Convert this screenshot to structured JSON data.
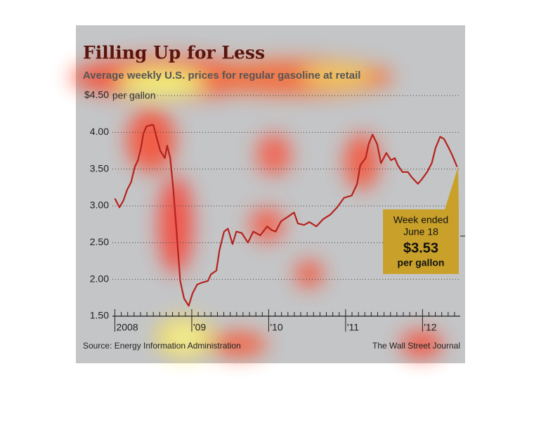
{
  "chart_data": {
    "type": "line",
    "title": "Filling Up for Less",
    "subtitle": "Average weekly U.S. prices for regular gasoline at retail",
    "y_unit": "per gallon",
    "source": "Source: Energy Information Administration",
    "credit": "The Wall Street Journal",
    "x": [
      2008.0,
      2008.06,
      2008.11,
      2008.16,
      2008.21,
      2008.26,
      2008.3,
      2008.34,
      2008.37,
      2008.41,
      2008.47,
      2008.5,
      2008.54,
      2008.59,
      2008.65,
      2008.68,
      2008.72,
      2008.76,
      2008.81,
      2008.85,
      2008.9,
      2008.96,
      2009.01,
      2009.07,
      2009.14,
      2009.21,
      2009.25,
      2009.32,
      2009.36,
      2009.42,
      2009.47,
      2009.53,
      2009.58,
      2009.65,
      2009.73,
      2009.8,
      2009.89,
      2009.98,
      2010.04,
      2010.09,
      2010.16,
      2010.26,
      2010.33,
      2010.38,
      2010.46,
      2010.53,
      2010.62,
      2010.71,
      2010.8,
      2010.89,
      2010.98,
      2011.08,
      2011.15,
      2011.19,
      2011.26,
      2011.3,
      2011.35,
      2011.41,
      2011.46,
      2011.53,
      2011.59,
      2011.64,
      2011.68,
      2011.74,
      2011.81,
      2011.86,
      2011.94,
      2011.99,
      2012.06,
      2012.12,
      2012.17,
      2012.23,
      2012.28,
      2012.34,
      2012.39,
      2012.45
    ],
    "series": [
      {
        "name": "Regular gasoline",
        "color": "#b5231c",
        "values": [
          3.1,
          2.98,
          3.07,
          3.22,
          3.32,
          3.53,
          3.62,
          3.79,
          3.98,
          4.08,
          4.1,
          4.1,
          3.94,
          3.75,
          3.65,
          3.82,
          3.65,
          3.22,
          2.55,
          1.98,
          1.74,
          1.64,
          1.81,
          1.93,
          1.96,
          1.98,
          2.07,
          2.12,
          2.4,
          2.65,
          2.69,
          2.48,
          2.65,
          2.63,
          2.5,
          2.65,
          2.6,
          2.72,
          2.67,
          2.65,
          2.79,
          2.86,
          2.91,
          2.76,
          2.74,
          2.78,
          2.72,
          2.82,
          2.88,
          2.98,
          3.11,
          3.14,
          3.3,
          3.55,
          3.65,
          3.84,
          3.97,
          3.84,
          3.58,
          3.72,
          3.62,
          3.65,
          3.55,
          3.46,
          3.46,
          3.39,
          3.3,
          3.36,
          3.46,
          3.58,
          3.79,
          3.94,
          3.91,
          3.79,
          3.68,
          3.53
        ]
      }
    ],
    "xlim": [
      2007.95,
      2012.49
    ],
    "xticks": [
      {
        "value": 2008,
        "label": "2008"
      },
      {
        "value": 2009,
        "label": "'09"
      },
      {
        "value": 2010,
        "label": "'10"
      },
      {
        "value": 2011,
        "label": "'11"
      },
      {
        "value": 2012,
        "label": "'12"
      }
    ],
    "ylim": [
      1.5,
      4.5
    ],
    "yticks": [
      {
        "value": 1.5,
        "label": "1.50"
      },
      {
        "value": 2,
        "label": "2.00"
      },
      {
        "value": 2.5,
        "label": "2.50"
      },
      {
        "value": 3,
        "label": "3.00"
      },
      {
        "value": 3.5,
        "label": "3.50"
      },
      {
        "value": 4,
        "label": "4.00"
      },
      {
        "value": 4.5,
        "label": "$4.50"
      }
    ],
    "grid": true,
    "annotation": {
      "lines": [
        "Week ended",
        "June 18"
      ],
      "value": 3.53,
      "value_label": "$3.53",
      "unit": "per gallon",
      "color": "#c9a12a"
    }
  }
}
